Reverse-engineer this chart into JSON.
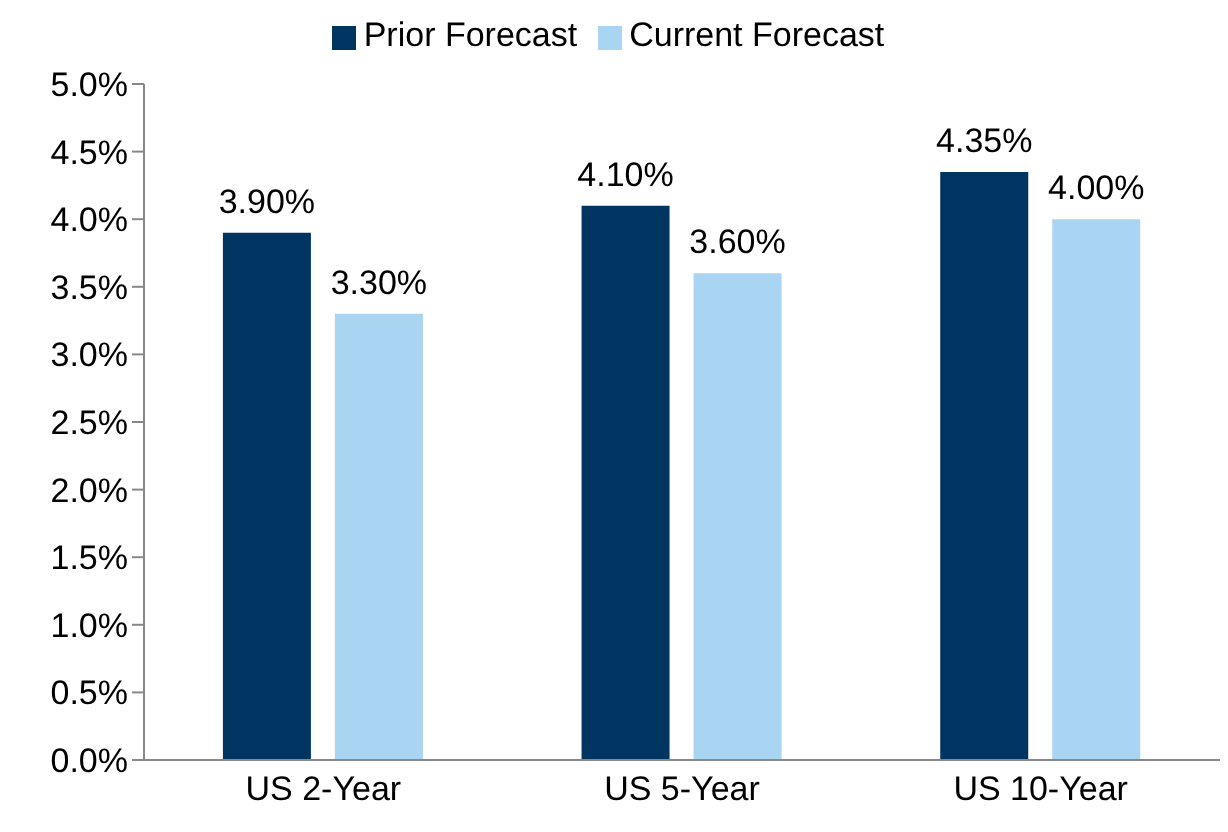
{
  "chart_data": {
    "type": "bar",
    "categories": [
      "US 2-Year",
      "US 5-Year",
      "US 10-Year"
    ],
    "series": [
      {
        "name": "Prior Forecast",
        "color": "#003562",
        "values": [
          3.9,
          4.1,
          4.35
        ],
        "value_labels": [
          "3.90%",
          "4.10%",
          "4.35%"
        ]
      },
      {
        "name": "Current Forecast",
        "color": "#a9d4f2",
        "values": [
          3.3,
          3.6,
          4.0
        ],
        "value_labels": [
          "3.30%",
          "3.60%",
          "4.00%"
        ]
      }
    ],
    "ylim": [
      0,
      5
    ],
    "yticks": [
      {
        "value": 0,
        "label": "0.0%"
      },
      {
        "value": 0.5,
        "label": "0.5%"
      },
      {
        "value": 1,
        "label": "1.0%"
      },
      {
        "value": 1.5,
        "label": "1.5%"
      },
      {
        "value": 2,
        "label": "2.0%"
      },
      {
        "value": 2.5,
        "label": "2.5%"
      },
      {
        "value": 3,
        "label": "3.0%"
      },
      {
        "value": 3.5,
        "label": "3.5%"
      },
      {
        "value": 4,
        "label": "4.0%"
      },
      {
        "value": 4.5,
        "label": "4.5%"
      },
      {
        "value": 5,
        "label": "5.0%"
      }
    ],
    "grid": false,
    "legend": "top"
  }
}
